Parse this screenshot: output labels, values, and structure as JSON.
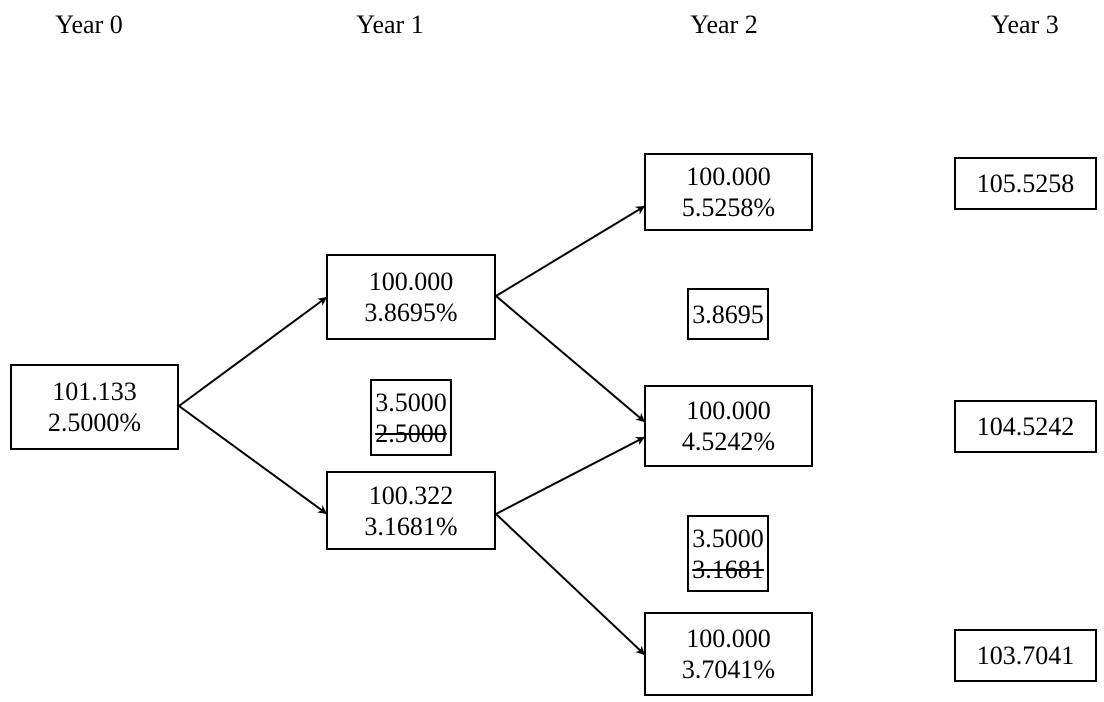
{
  "headers": [
    "Year 0",
    "Year 1",
    "Year 2",
    "Year 3"
  ],
  "nodes": {
    "y0": {
      "price": "101.133",
      "rate": "2.5000%"
    },
    "y1_up": {
      "price": "100.000",
      "rate": "3.8695%"
    },
    "y1_down": {
      "price": "100.322",
      "rate": "3.1681%"
    },
    "y2_uu": {
      "price": "100.000",
      "rate": "5.5258%"
    },
    "y2_ud": {
      "price": "100.000",
      "rate": "4.5242%"
    },
    "y2_dd": {
      "price": "100.000",
      "rate": "3.7041%"
    }
  },
  "coupon_boxes": {
    "y1": {
      "top": "3.5000",
      "struck": "2.5000"
    },
    "y2_up": {
      "value": "3.8695"
    },
    "y2_down": {
      "top": "3.5000",
      "struck": "3.1681"
    }
  },
  "terminal": {
    "y3_a": "105.5258",
    "y3_b": "104.5242",
    "y3_c": "103.7041"
  }
}
